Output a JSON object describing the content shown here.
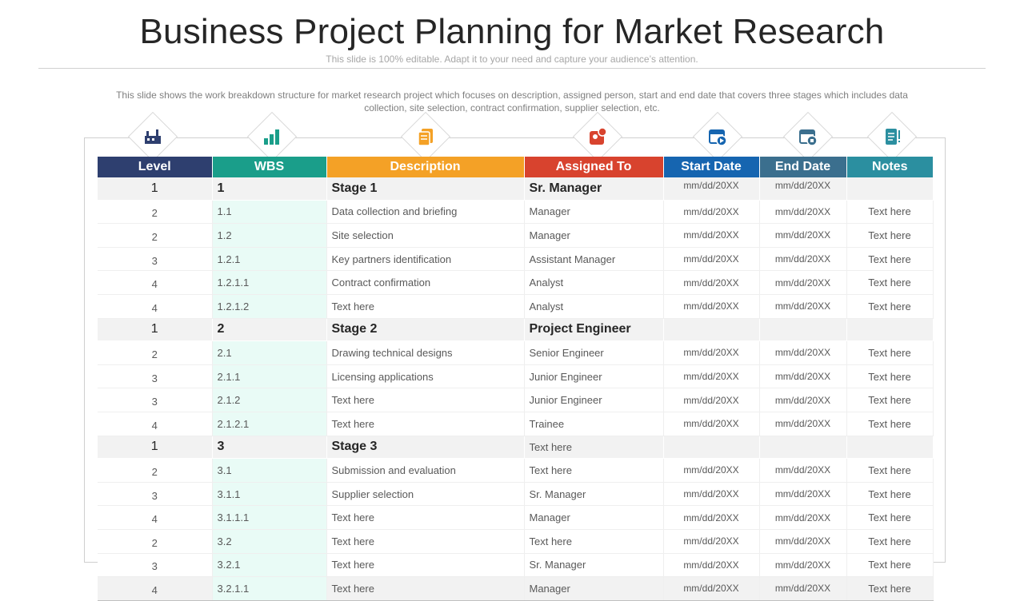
{
  "slide": {
    "title": "Business Project Planning for Market Research",
    "subtitle": "This slide is 100% editable. Adapt it to your need and capture your audience’s attention.",
    "description": "This slide shows the work breakdown structure for market research project which focuses on description, assigned person, start and end date that covers three stages which includes data collection, site selection, contract confirmation, supplier selection, etc."
  },
  "colors": {
    "level": "#2e3f6f",
    "wbs": "#1a9e8a",
    "description": "#f4a126",
    "assigned": "#d8432e",
    "start": "#1665b0",
    "end": "#3b6f8e",
    "notes": "#2b8fa0"
  },
  "icons": [
    "factory-icon",
    "bar-chart-icon",
    "documents-icon",
    "contact-card-icon",
    "calendar-play-icon",
    "calendar-stop-icon",
    "notes-icon"
  ],
  "table": {
    "headers": {
      "level": "Level",
      "wbs": "WBS",
      "description": "Description",
      "assigned": "Assigned To",
      "start": "Start Date",
      "end": "End Date",
      "notes": "Notes"
    },
    "rows": [
      {
        "type": "stage",
        "level": "1",
        "wbs": "1",
        "description": "Stage 1",
        "assigned": "Sr. Manager",
        "start": "mm/dd/20XX",
        "end": "mm/dd/20XX",
        "notes": ""
      },
      {
        "type": "data",
        "level": "2",
        "wbs": "1.1",
        "description": "Data collection and briefing",
        "assigned": "Manager",
        "start": "mm/dd/20XX",
        "end": "mm/dd/20XX",
        "notes": "Text here"
      },
      {
        "type": "data",
        "level": "2",
        "wbs": "1.2",
        "description": "Site selection",
        "assigned": "Manager",
        "start": "mm/dd/20XX",
        "end": "mm/dd/20XX",
        "notes": "Text here"
      },
      {
        "type": "data",
        "level": "3",
        "wbs": "1.2.1",
        "description": "Key partners identification",
        "assigned": "Assistant Manager",
        "start": "mm/dd/20XX",
        "end": "mm/dd/20XX",
        "notes": "Text here"
      },
      {
        "type": "data",
        "level": "4",
        "wbs": "1.2.1.1",
        "description": "Contract confirmation",
        "assigned": "Analyst",
        "start": "mm/dd/20XX",
        "end": "mm/dd/20XX",
        "notes": "Text here"
      },
      {
        "type": "data",
        "level": "4",
        "wbs": "1.2.1.2",
        "description": "Text here",
        "assigned": "Analyst",
        "start": "mm/dd/20XX",
        "end": "mm/dd/20XX",
        "notes": "Text here"
      },
      {
        "type": "stage",
        "level": "1",
        "wbs": "2",
        "description": "Stage 2",
        "assigned": "Project Engineer",
        "start": "",
        "end": "",
        "notes": ""
      },
      {
        "type": "data",
        "level": "2",
        "wbs": "2.1",
        "description": "Drawing technical designs",
        "assigned": "Senior Engineer",
        "start": "mm/dd/20XX",
        "end": "mm/dd/20XX",
        "notes": "Text here"
      },
      {
        "type": "data",
        "level": "3",
        "wbs": "2.1.1",
        "description": "Licensing applications",
        "assigned": "Junior Engineer",
        "start": "mm/dd/20XX",
        "end": "mm/dd/20XX",
        "notes": "Text here"
      },
      {
        "type": "data",
        "level": "3",
        "wbs": "2.1.2",
        "description": "Text here",
        "assigned": "Junior Engineer",
        "start": "mm/dd/20XX",
        "end": "mm/dd/20XX",
        "notes": "Text here"
      },
      {
        "type": "data",
        "level": "4",
        "wbs": "2.1.2.1",
        "description": "Text here",
        "assigned": "Trainee",
        "start": "mm/dd/20XX",
        "end": "mm/dd/20XX",
        "notes": "Text here"
      },
      {
        "type": "stage",
        "level": "1",
        "wbs": "3",
        "description": "Stage 3",
        "assigned": "Text here",
        "start": "",
        "end": "",
        "notes": ""
      },
      {
        "type": "data",
        "level": "2",
        "wbs": "3.1",
        "description": "Submission and evaluation",
        "assigned": "Text here",
        "start": "mm/dd/20XX",
        "end": "mm/dd/20XX",
        "notes": "Text here"
      },
      {
        "type": "data",
        "level": "3",
        "wbs": "3.1.1",
        "description": "Supplier selection",
        "assigned": "Sr. Manager",
        "start": "mm/dd/20XX",
        "end": "mm/dd/20XX",
        "notes": "Text here"
      },
      {
        "type": "data",
        "level": "4",
        "wbs": "3.1.1.1",
        "description": "Text here",
        "assigned": "Manager",
        "start": "mm/dd/20XX",
        "end": "mm/dd/20XX",
        "notes": "Text here"
      },
      {
        "type": "data",
        "level": "2",
        "wbs": "3.2",
        "description": "Text here",
        "assigned": "Text here",
        "start": "mm/dd/20XX",
        "end": "mm/dd/20XX",
        "notes": "Text here"
      },
      {
        "type": "data",
        "level": "3",
        "wbs": "3.2.1",
        "description": "Text here",
        "assigned": "Sr. Manager",
        "start": "mm/dd/20XX",
        "end": "mm/dd/20XX",
        "notes": "Text here"
      },
      {
        "type": "data",
        "level": "4",
        "wbs": "3.2.1.1",
        "description": "Text here",
        "assigned": "Manager",
        "start": "mm/dd/20XX",
        "end": "mm/dd/20XX",
        "notes": "Text here"
      }
    ]
  }
}
